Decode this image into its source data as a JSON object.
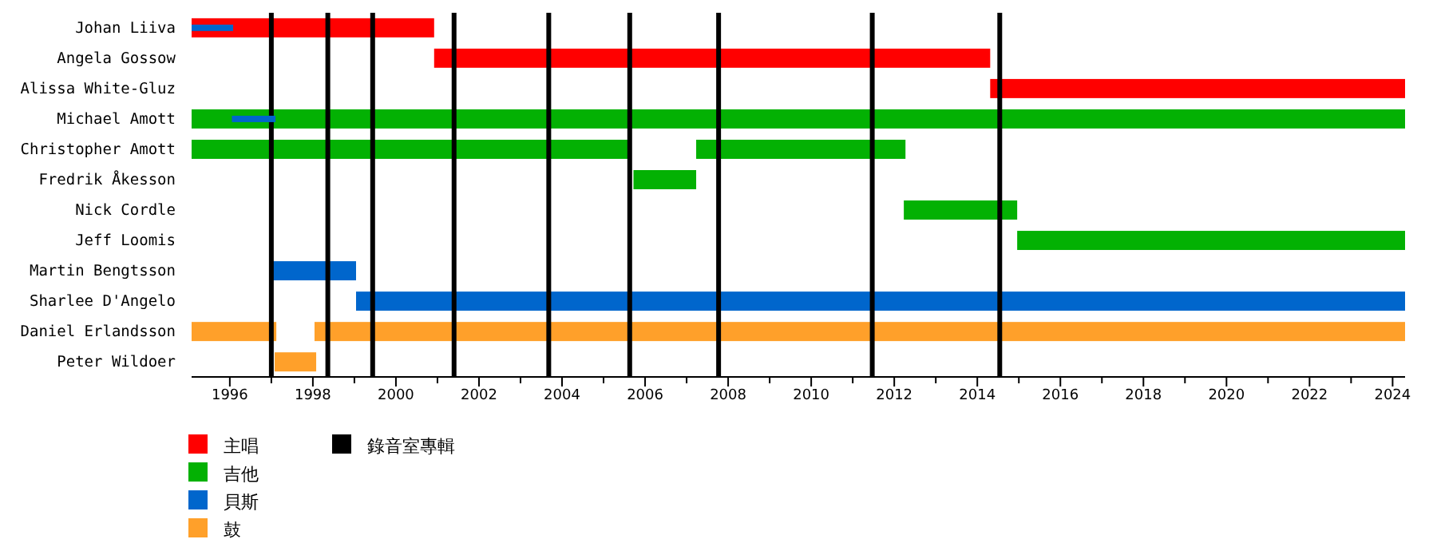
{
  "chart_data": {
    "type": "bar",
    "orientation": "horizontal",
    "categories": [
      "Johan Liiva",
      "Angela Gossow",
      "Alissa White-Gluz",
      "Michael Amott",
      "Christopher Amott",
      "Fredrik Åkesson",
      "Nick Cordle",
      "Jeff Loomis",
      "Martin Bengtsson",
      "Sharlee D'Angelo",
      "Daniel Erlandsson",
      "Peter Wildoer"
    ],
    "series": [
      {
        "name": "主唱",
        "color": "#ff0000",
        "base": [
          1995.08,
          2000.92,
          2014.31,
          null,
          null,
          null,
          null,
          null,
          null,
          null,
          null,
          null
        ],
        "values": [
          5.84,
          13.39,
          9.99,
          null,
          null,
          null,
          null,
          null,
          null,
          null,
          null,
          null
        ]
      },
      {
        "name": "吉他",
        "color": "#03b103",
        "base": [
          null,
          null,
          null,
          1995.08,
          1995.08,
          2005.72,
          2012.23,
          2014.96,
          null,
          null,
          null,
          null
        ],
        "values": [
          null,
          null,
          null,
          29.22,
          10.52,
          1.51,
          2.73,
          9.34,
          null,
          null,
          null,
          null
        ]
      },
      {
        "color": "#03b103",
        "base": [
          null,
          null,
          null,
          null,
          2007.23,
          null,
          null,
          null,
          null,
          null,
          null,
          null
        ],
        "values": [
          null,
          null,
          null,
          null,
          5.04,
          null,
          null,
          null,
          null,
          null,
          null,
          null
        ]
      },
      {
        "name": "貝斯",
        "color": "#0066cc",
        "base": [
          null,
          null,
          null,
          null,
          null,
          null,
          null,
          null,
          1997.04,
          1999.04,
          null,
          null
        ],
        "values": [
          null,
          null,
          null,
          null,
          null,
          null,
          null,
          null,
          2.0,
          25.26,
          null,
          null
        ]
      },
      {
        "name": "鼓",
        "color": "#ffa02a",
        "base": [
          null,
          null,
          null,
          null,
          null,
          null,
          null,
          null,
          null,
          null,
          1995.08,
          1997.08
        ],
        "values": [
          null,
          null,
          null,
          null,
          null,
          null,
          null,
          null,
          null,
          null,
          2.04,
          1.0
        ]
      },
      {
        "color": "#ffa02a",
        "base": [
          null,
          null,
          null,
          null,
          null,
          null,
          null,
          null,
          null,
          null,
          1998.04,
          null
        ],
        "values": [
          null,
          null,
          null,
          null,
          null,
          null,
          null,
          null,
          null,
          null,
          26.26,
          null
        ]
      },
      {
        "type": "bar",
        "color": "#0066cc",
        "base": [
          1995.08,
          null,
          null,
          1996.05,
          null,
          null,
          null,
          null,
          null,
          null,
          null,
          null
        ],
        "values": [
          1.0,
          null,
          null,
          1.05,
          null,
          null,
          null,
          null,
          null,
          null,
          null,
          null
        ]
      }
    ],
    "xlim": [
      1995.08,
      2024.3
    ],
    "xticks": [
      1996,
      {
        "value": 1997,
        "label": null
      },
      1998,
      {
        "value": 1999,
        "label": null
      },
      2000,
      {
        "value": 2001,
        "label": null
      },
      2002,
      {
        "value": 2003,
        "label": null
      },
      2004,
      {
        "value": 2005,
        "label": null
      },
      2006,
      {
        "value": 2007,
        "label": null
      },
      2008,
      {
        "value": 2009,
        "label": null
      },
      2010,
      {
        "value": 2011,
        "label": null
      },
      2012,
      {
        "value": 2013,
        "label": null
      },
      2014,
      {
        "value": 2015,
        "label": null
      },
      2016,
      {
        "value": 2017,
        "label": null
      },
      2018,
      {
        "value": 2019,
        "label": null
      },
      2020,
      {
        "value": 2021,
        "label": null
      },
      2022,
      {
        "value": 2023,
        "label": null
      },
      2024
    ],
    "ref_lines": [
      {
        "axis": "x",
        "value": 1997.0,
        "label": "錄音室專輯",
        "color": "#000000"
      },
      {
        "axis": "x",
        "value": 1998.36,
        "color": "#000000"
      },
      {
        "axis": "x",
        "value": 1999.44,
        "color": "#000000"
      },
      {
        "axis": "x",
        "value": 2001.4,
        "color": "#000000"
      },
      {
        "axis": "x",
        "value": 2003.68,
        "color": "#000000"
      },
      {
        "axis": "x",
        "value": 2005.63,
        "color": "#000000"
      },
      {
        "axis": "x",
        "value": 2007.77,
        "color": "#000000"
      },
      {
        "axis": "x",
        "value": 2011.47,
        "color": "#000000"
      },
      {
        "axis": "x",
        "value": 2014.54,
        "color": "#000000"
      }
    ],
    "legend": "bottom left",
    "grid": false
  }
}
